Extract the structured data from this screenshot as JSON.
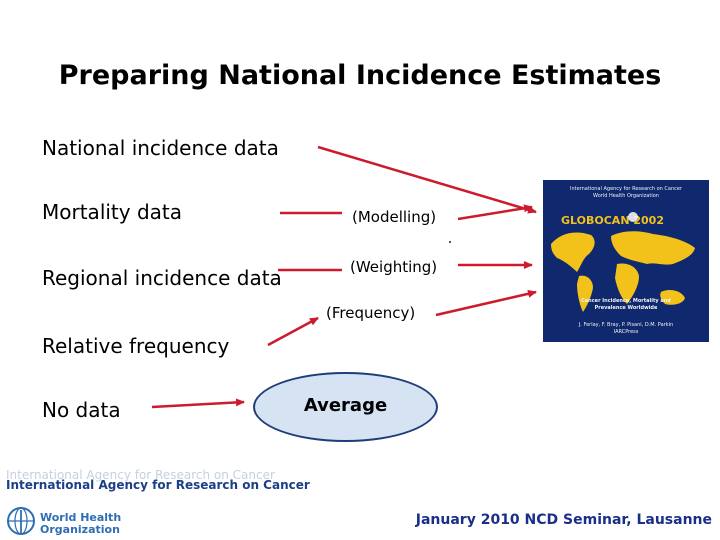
{
  "title": "Preparing National Incidence Estimates",
  "sources": {
    "national": "National incidence data",
    "mortality": "Mortality data",
    "regional": "Regional incidence data",
    "relative": "Relative frequency",
    "nodata": "No data"
  },
  "methods": {
    "modelling": "(Modelling)",
    "weighting": "(Weighting)",
    "frequency": "(Frequency)",
    "average": "Average"
  },
  "cover": {
    "line1": "International Agency for Research on Cancer",
    "line2": "World Health Organization",
    "logo": "GLOBOCAN 2002",
    "bottom1": "Cancer Incidence, Mortality and",
    "bottom2": "Prevalence Worldwide",
    "authors": "J. Ferlay, F. Bray, P. Pisani, D.M. Parkin",
    "publisher": "IARCPress"
  },
  "footer": {
    "iarc": "International Agency for Research on Cancer",
    "who_line1": "World Health",
    "who_line2": "Organization",
    "event": "January 2010 NCD Seminar, Lausanne"
  },
  "colors": {
    "arrow": "#cc1b2e",
    "footer_text": "#1b2f8a",
    "cover_bg": "#10286e",
    "map_land": "#f2c21a"
  }
}
